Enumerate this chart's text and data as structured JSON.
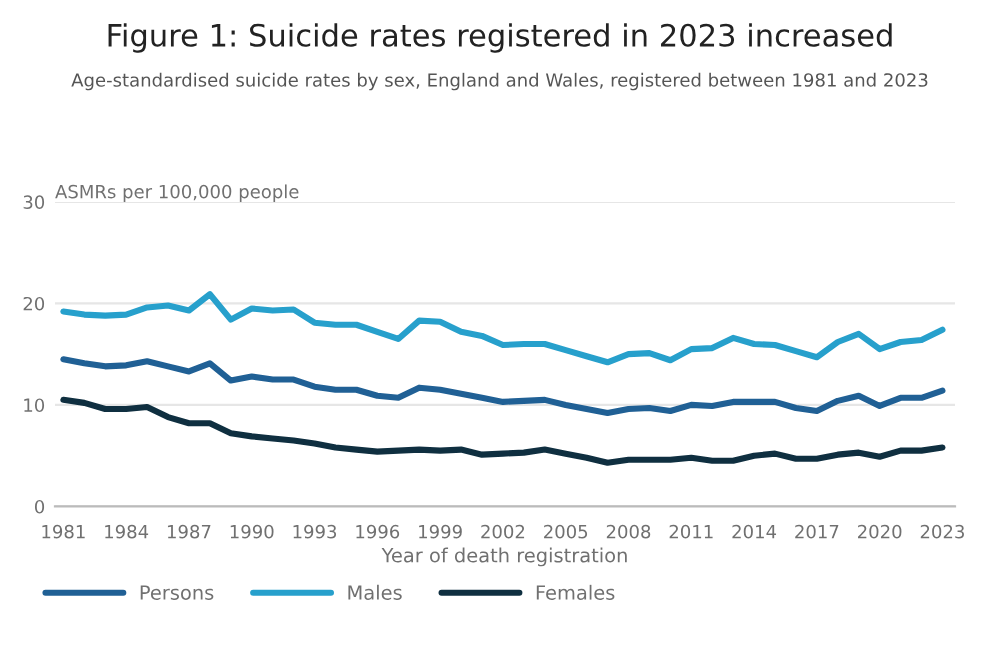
{
  "chart_data": {
    "type": "line",
    "title": "Figure 1: Suicide rates registered in 2023 increased",
    "subtitle": "Age-standardised suicide rates by sex, England and Wales, registered between 1981 and 2023",
    "ylabel": "ASMRs per 100,000 people",
    "xlabel": "Year of death registration",
    "x": [
      1981,
      1982,
      1983,
      1984,
      1985,
      1986,
      1987,
      1988,
      1989,
      1990,
      1991,
      1992,
      1993,
      1994,
      1995,
      1996,
      1997,
      1998,
      1999,
      2000,
      2001,
      2002,
      2003,
      2004,
      2005,
      2006,
      2007,
      2008,
      2009,
      2010,
      2011,
      2012,
      2013,
      2014,
      2015,
      2016,
      2017,
      2018,
      2019,
      2020,
      2021,
      2022,
      2023
    ],
    "series": [
      {
        "name": "Persons",
        "color": "#206095",
        "values": [
          14.5,
          14.1,
          13.8,
          13.9,
          14.3,
          13.8,
          13.3,
          14.1,
          12.4,
          12.8,
          12.5,
          12.5,
          11.8,
          11.5,
          11.5,
          10.9,
          10.7,
          11.7,
          11.5,
          11.1,
          10.7,
          10.3,
          10.4,
          10.5,
          10.0,
          9.6,
          9.2,
          9.6,
          9.7,
          9.4,
          10.0,
          9.9,
          10.3,
          10.3,
          10.3,
          9.7,
          9.4,
          10.4,
          10.9,
          9.9,
          10.7,
          10.7,
          11.4
        ]
      },
      {
        "name": "Males",
        "color": "#27a0cc",
        "values": [
          19.2,
          18.9,
          18.8,
          18.9,
          19.6,
          19.8,
          19.3,
          20.9,
          18.4,
          19.5,
          19.3,
          19.4,
          18.1,
          17.9,
          17.9,
          17.2,
          16.5,
          18.3,
          18.2,
          17.2,
          16.8,
          15.9,
          16.0,
          16.0,
          15.4,
          14.8,
          14.2,
          15.0,
          15.1,
          14.4,
          15.5,
          15.6,
          16.6,
          16.0,
          15.9,
          15.3,
          14.7,
          16.2,
          17.0,
          15.5,
          16.2,
          16.4,
          17.4
        ]
      },
      {
        "name": "Females",
        "color": "#0f2f40",
        "values": [
          10.5,
          10.2,
          9.6,
          9.6,
          9.8,
          8.8,
          8.2,
          8.2,
          7.2,
          6.9,
          6.7,
          6.5,
          6.2,
          5.8,
          5.6,
          5.4,
          5.5,
          5.6,
          5.5,
          5.6,
          5.1,
          5.2,
          5.3,
          5.6,
          5.2,
          4.8,
          4.3,
          4.6,
          4.6,
          4.6,
          4.8,
          4.5,
          4.5,
          5.0,
          5.2,
          4.7,
          4.7,
          5.1,
          5.3,
          4.9,
          5.5,
          5.5,
          5.8
        ]
      }
    ],
    "xlim": [
      1980.6,
      2023.6
    ],
    "xticks": [
      1981,
      1984,
      1987,
      1990,
      1993,
      1996,
      1999,
      2002,
      2005,
      2008,
      2011,
      2014,
      2017,
      2020,
      2023
    ],
    "ylim": [
      0,
      30
    ],
    "yticks": [
      0,
      10,
      20,
      30
    ],
    "grid": "y",
    "legend": "bottom left",
    "marker": "none",
    "line_style": "solid"
  }
}
